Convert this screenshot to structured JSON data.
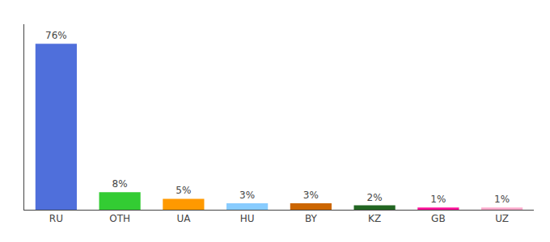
{
  "chart_data": {
    "type": "bar",
    "categories": [
      "RU",
      "OTH",
      "UA",
      "HU",
      "BY",
      "KZ",
      "GB",
      "UZ"
    ],
    "values": [
      76,
      8,
      5,
      3,
      3,
      2,
      1,
      1
    ],
    "value_labels": [
      "76%",
      "8%",
      "5%",
      "3%",
      "3%",
      "2%",
      "1%",
      "1%"
    ],
    "colors": [
      "#4f6fdb",
      "#33cc33",
      "#ff9900",
      "#88ccff",
      "#cc6600",
      "#226622",
      "#ff1199",
      "#ffaacc"
    ],
    "ylim": [
      0,
      85
    ],
    "data_labels": true,
    "tick_labels": "x",
    "grid": false
  }
}
